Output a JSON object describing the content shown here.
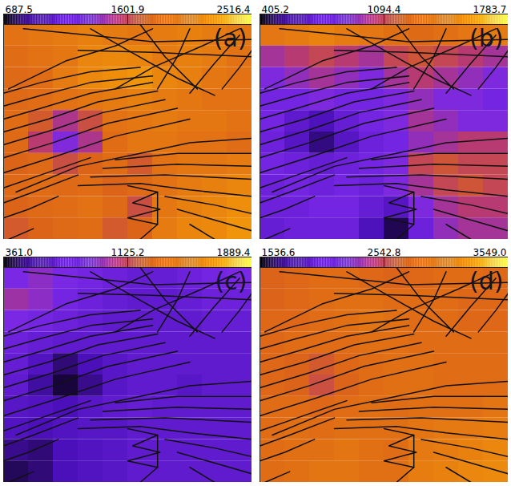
{
  "chart_data": [
    {
      "type": "heatmap",
      "title": "(a)",
      "xlim": [
        0,
        1
      ],
      "ylim": [
        0,
        1
      ],
      "tick_labels": false,
      "colorbar": {
        "range": [
          687.5,
          2516.4
        ],
        "ticks": [
          687.5,
          1601.9,
          2516.4
        ]
      },
      "cells": [
        [
          1900,
          1950,
          2000,
          2050,
          2000,
          1950,
          2000,
          2050,
          2000,
          1950
        ],
        [
          1850,
          1900,
          1950,
          2100,
          2150,
          2100,
          2000,
          2050,
          2000,
          1900
        ],
        [
          1800,
          1850,
          2000,
          2150,
          2200,
          2250,
          2100,
          2050,
          1950,
          1900
        ],
        [
          1800,
          1850,
          1900,
          1950,
          2000,
          2050,
          2000,
          1950,
          1900,
          1900
        ],
        [
          1850,
          1700,
          1500,
          1650,
          1900,
          1950,
          2000,
          1950,
          1950,
          1900
        ],
        [
          1800,
          1550,
          1350,
          1500,
          1850,
          1950,
          1950,
          1900,
          1900,
          1850
        ],
        [
          1750,
          1800,
          1650,
          1750,
          1850,
          1700,
          1900,
          1950,
          1950,
          2000
        ],
        [
          1800,
          1850,
          1800,
          1850,
          1750,
          1800,
          1900,
          2000,
          2050,
          2100
        ],
        [
          1750,
          1800,
          1850,
          1900,
          1800,
          1650,
          1950,
          2050,
          2100,
          2200
        ],
        [
          1700,
          1750,
          1800,
          1850,
          1700,
          1750,
          2000,
          2100,
          2150,
          2250
        ]
      ]
    },
    {
      "type": "heatmap",
      "title": "(b)",
      "xlim": [
        0,
        1
      ],
      "ylim": [
        0,
        1
      ],
      "tick_labels": false,
      "colorbar": {
        "range": [
          405.2,
          1783.7
        ],
        "ticks": [
          405.2,
          1094.4,
          1783.7
        ]
      },
      "cells": [
        [
          1350,
          1400,
          1450,
          1400,
          1350,
          1300,
          1250,
          1300,
          1350,
          1400
        ],
        [
          1000,
          1050,
          1100,
          1050,
          1000,
          1100,
          1150,
          1100,
          1050,
          1000
        ],
        [
          900,
          950,
          1000,
          950,
          900,
          1000,
          1050,
          1000,
          950,
          900
        ],
        [
          850,
          850,
          900,
          850,
          850,
          900,
          950,
          900,
          900,
          850
        ],
        [
          850,
          700,
          600,
          750,
          850,
          900,
          1000,
          950,
          900,
          900
        ],
        [
          800,
          650,
          520,
          650,
          800,
          850,
          950,
          1000,
          1050,
          1050
        ],
        [
          850,
          800,
          750,
          800,
          850,
          900,
          1100,
          1150,
          1100,
          1100
        ],
        [
          800,
          850,
          800,
          850,
          800,
          900,
          1000,
          1100,
          1150,
          1100
        ],
        [
          800,
          800,
          850,
          850,
          750,
          650,
          900,
          1000,
          1050,
          1050
        ],
        [
          750,
          800,
          800,
          800,
          600,
          480,
          800,
          950,
          1000,
          1000
        ]
      ]
    },
    {
      "type": "heatmap",
      "title": "(c)",
      "xlim": [
        0,
        1
      ],
      "ylim": [
        0,
        1
      ],
      "tick_labels": false,
      "colorbar": {
        "range": [
          361,
          1889.4
        ],
        "ticks": [
          {
            "value": 361,
            "label": "361.0"
          },
          1125.2,
          1889.4
        ]
      },
      "cells": [
        [
          900,
          950,
          900,
          850,
          800,
          750,
          750,
          800,
          850,
          900
        ],
        [
          1000,
          950,
          850,
          800,
          750,
          700,
          700,
          750,
          800,
          800
        ],
        [
          900,
          850,
          800,
          750,
          700,
          700,
          700,
          700,
          750,
          750
        ],
        [
          800,
          750,
          700,
          700,
          700,
          700,
          700,
          700,
          700,
          700
        ],
        [
          750,
          600,
          480,
          550,
          650,
          700,
          700,
          700,
          700,
          700
        ],
        [
          700,
          520,
          420,
          500,
          650,
          700,
          700,
          650,
          700,
          700
        ],
        [
          650,
          600,
          550,
          650,
          700,
          750,
          700,
          700,
          700,
          700
        ],
        [
          600,
          550,
          600,
          650,
          650,
          700,
          700,
          700,
          700,
          700
        ],
        [
          500,
          480,
          550,
          600,
          650,
          700,
          700,
          700,
          700,
          700
        ],
        [
          450,
          480,
          550,
          600,
          650,
          700,
          700,
          700,
          700,
          700
        ]
      ]
    },
    {
      "type": "heatmap",
      "title": "(d)",
      "xlim": [
        0,
        1
      ],
      "ylim": [
        0,
        1
      ],
      "tick_labels": false,
      "colorbar": {
        "range": [
          1536.6,
          3549
        ],
        "ticks": [
          1536.6,
          2542.8,
          {
            "value": 3549,
            "label": "3549.0"
          }
        ]
      },
      "cells": [
        [
          2700,
          2750,
          2800,
          2800,
          2750,
          2700,
          2750,
          2800,
          2800,
          2750
        ],
        [
          2700,
          2750,
          2800,
          2850,
          2850,
          2800,
          2800,
          2800,
          2750,
          2750
        ],
        [
          2750,
          2750,
          2800,
          2850,
          2900,
          2850,
          2800,
          2800,
          2750,
          2750
        ],
        [
          2750,
          2800,
          2800,
          2800,
          2850,
          2850,
          2800,
          2800,
          2800,
          2800
        ],
        [
          2750,
          2700,
          2650,
          2750,
          2800,
          2850,
          2850,
          2800,
          2800,
          2800
        ],
        [
          2750,
          2700,
          2600,
          2700,
          2800,
          2850,
          2850,
          2800,
          2800,
          2800
        ],
        [
          2800,
          2800,
          2750,
          2800,
          2850,
          2800,
          2850,
          2850,
          2850,
          2900
        ],
        [
          2800,
          2850,
          2800,
          2850,
          2850,
          2850,
          2900,
          2950,
          2950,
          3000
        ],
        [
          2800,
          2850,
          2850,
          2900,
          2850,
          2800,
          2950,
          3000,
          3050,
          3100
        ],
        [
          2800,
          2850,
          2900,
          2900,
          2850,
          2850,
          3000,
          3050,
          3100,
          3150
        ]
      ]
    }
  ],
  "lines": [
    [
      [
        0,
        0.32
      ],
      [
        0.15,
        0.27
      ],
      [
        0.35,
        0.22
      ],
      [
        0.55,
        0.2
      ]
    ],
    [
      [
        0,
        0.38
      ],
      [
        0.15,
        0.33
      ],
      [
        0.35,
        0.27
      ],
      [
        0.6,
        0.24
      ]
    ],
    [
      [
        0,
        0.44
      ],
      [
        0.15,
        0.39
      ],
      [
        0.35,
        0.32
      ],
      [
        0.6,
        0.27
      ]
    ],
    [
      [
        0,
        0.5
      ],
      [
        0.18,
        0.44
      ],
      [
        0.38,
        0.36
      ],
      [
        0.62,
        0.31
      ]
    ],
    [
      [
        0,
        0.56
      ],
      [
        0.2,
        0.49
      ],
      [
        0.4,
        0.41
      ],
      [
        0.65,
        0.35
      ]
    ],
    [
      [
        0,
        0.62
      ],
      [
        0.2,
        0.55
      ],
      [
        0.42,
        0.46
      ],
      [
        0.7,
        0.39
      ]
    ],
    [
      [
        0,
        0.69
      ],
      [
        0.22,
        0.61
      ],
      [
        0.45,
        0.52
      ],
      [
        0.75,
        0.44
      ]
    ],
    [
      [
        0,
        0.76
      ],
      [
        0.15,
        0.7
      ],
      [
        0.35,
        0.62
      ]
    ],
    [
      [
        0,
        0.83
      ],
      [
        0.12,
        0.78
      ],
      [
        0.3,
        0.7
      ]
    ],
    [
      [
        0,
        0.9
      ],
      [
        0.1,
        0.86
      ],
      [
        0.22,
        0.8
      ]
    ],
    [
      [
        0.02,
        1
      ],
      [
        0.12,
        0.95
      ]
    ],
    [
      [
        0.05,
        0.78
      ],
      [
        0.3,
        0.66
      ],
      [
        0.55,
        0.6
      ],
      [
        0.75,
        0.55
      ],
      [
        1,
        0.53
      ]
    ],
    [
      [
        0.45,
        0.63
      ],
      [
        0.7,
        0.6
      ],
      [
        1,
        0.6
      ]
    ],
    [
      [
        0.4,
        0.67
      ],
      [
        0.7,
        0.65
      ],
      [
        1,
        0.66
      ]
    ],
    [
      [
        0.35,
        0.71
      ],
      [
        0.65,
        0.7
      ],
      [
        1,
        0.72
      ]
    ],
    [
      [
        0.3,
        0.75
      ],
      [
        0.55,
        0.74
      ],
      [
        0.75,
        0.77
      ],
      [
        1,
        0.8
      ]
    ],
    [
      [
        0.65,
        0.8
      ],
      [
        0.85,
        0.84
      ],
      [
        1,
        0.88
      ]
    ],
    [
      [
        0.7,
        0.86
      ],
      [
        0.88,
        0.92
      ],
      [
        1,
        0.96
      ]
    ],
    [
      [
        0.75,
        0.93
      ],
      [
        0.85,
        1
      ]
    ],
    [
      [
        0.5,
        0.75
      ],
      [
        0.62,
        0.78
      ],
      [
        0.52,
        0.83
      ],
      [
        0.63,
        0.86
      ],
      [
        0.5,
        0.9
      ],
      [
        0.62,
        0.93
      ],
      [
        0.55,
        1
      ]
    ],
    [
      [
        0.62,
        0.78
      ],
      [
        0.62,
        0.93
      ]
    ],
    [
      [
        0.08,
        0.02
      ],
      [
        0.35,
        0.05
      ],
      [
        0.6,
        0.08
      ],
      [
        1,
        0.07
      ]
    ],
    [
      [
        0.3,
        0.12
      ],
      [
        0.6,
        0.13
      ],
      [
        1,
        0.15
      ]
    ],
    [
      [
        0.02,
        0.3
      ],
      [
        0.25,
        0.17
      ],
      [
        0.45,
        0.1
      ],
      [
        0.6,
        0.02
      ]
    ],
    [
      [
        0.35,
        0.02
      ],
      [
        0.5,
        0.12
      ],
      [
        0.7,
        0.25
      ],
      [
        0.85,
        0.33
      ]
    ],
    [
      [
        0.55,
        0
      ],
      [
        0.65,
        0.15
      ],
      [
        0.78,
        0.3
      ]
    ],
    [
      [
        0.75,
        0.02
      ],
      [
        0.7,
        0.15
      ],
      [
        0.62,
        0.3
      ]
    ],
    [
      [
        0.95,
        0.05
      ],
      [
        0.85,
        0.18
      ],
      [
        0.75,
        0.32
      ]
    ],
    [
      [
        0.45,
        0.3
      ],
      [
        0.6,
        0.2
      ],
      [
        0.8,
        0.1
      ],
      [
        0.95,
        0.02
      ]
    ],
    [
      [
        0.88,
        0.3
      ],
      [
        0.95,
        0.2
      ],
      [
        1,
        0.12
      ]
    ]
  ]
}
